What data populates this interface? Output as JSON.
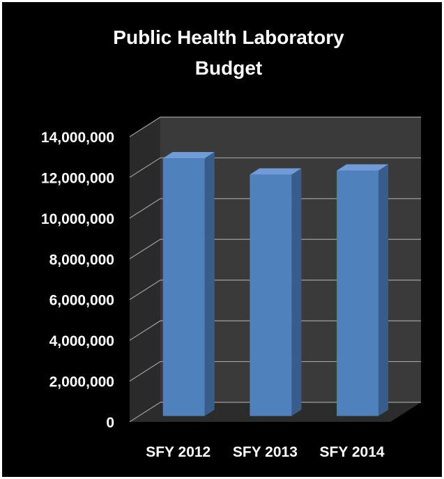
{
  "chart_data": {
    "type": "bar",
    "title_line1": "Public Health Laboratory",
    "title_line2": "Budget",
    "categories": [
      "SFY 2012",
      "SFY 2013",
      "SFY 2014"
    ],
    "values": [
      12650000,
      11850000,
      12050000
    ],
    "ylim": [
      0,
      14000000
    ],
    "yticks": [
      "0",
      "2,000,000",
      "4,000,000",
      "6,000,000",
      "8,000,000",
      "10,000,000",
      "12,000,000",
      "14,000,000"
    ],
    "grid": true,
    "legend": "none",
    "colors": {
      "bar_front": "#4f81bd",
      "bar_top": "#6f9bd6",
      "bar_side": "#385d8a",
      "wall": "#3a3a3a",
      "side_wall": "#2a2a2a",
      "floor": "#2c2c2c",
      "gridline": "#a0a0a0",
      "background": "#000000"
    }
  }
}
